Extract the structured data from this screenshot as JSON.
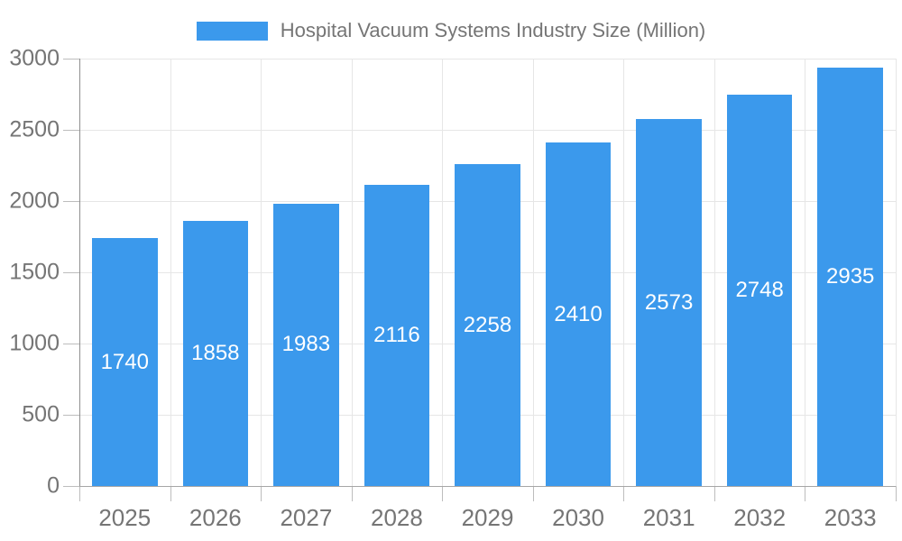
{
  "chart_data": {
    "type": "bar",
    "title": "Hospital Vacuum Systems Industry Size (Million)",
    "categories": [
      "2025",
      "2026",
      "2027",
      "2028",
      "2029",
      "2030",
      "2031",
      "2032",
      "2033"
    ],
    "values": [
      1740,
      1858,
      1983,
      2116,
      2258,
      2410,
      2573,
      2748,
      2935
    ],
    "series_name": "Hospital Vacuum Systems Industry Size (Million)",
    "xlabel": "",
    "ylabel": "",
    "ylim": [
      0,
      3000
    ],
    "yticks": [
      0,
      500,
      1000,
      1500,
      2000,
      2500,
      3000
    ],
    "grid": true,
    "legend_position": "top",
    "bar_color": "#3B99EC",
    "value_label_color": "#ffffff",
    "axis_text_color": "#757575",
    "grid_color": "#e6e6e6"
  }
}
